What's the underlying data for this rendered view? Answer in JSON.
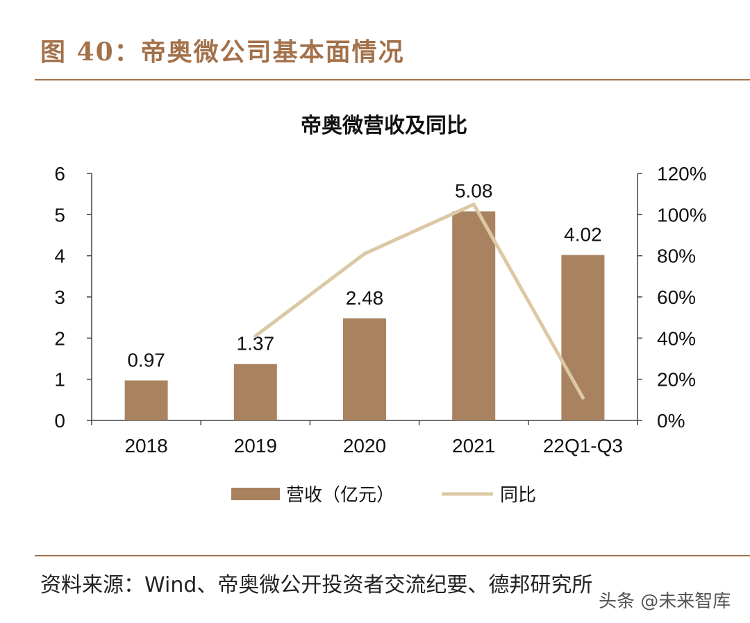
{
  "figure": {
    "title": "图 40：帝奥微公司基本面情况",
    "source": "资料来源：Wind、帝奥微公开投资者交流纪要、德邦研究所",
    "watermark": "头条 @未来智库"
  },
  "colors": {
    "accent": "#a3714a",
    "bar": "#a98360",
    "line": "#dcc8a4",
    "axis": "#444444",
    "text": "#111111"
  },
  "chart_data": {
    "type": "bar",
    "title": "帝奥微营收及同比",
    "categories": [
      "2018",
      "2019",
      "2020",
      "2021",
      "22Q1-Q3"
    ],
    "series": [
      {
        "name": "营收（亿元）",
        "type": "bar",
        "axis": "left",
        "values": [
          0.97,
          1.37,
          2.48,
          5.08,
          4.02
        ],
        "data_labels": [
          "0.97",
          "1.37",
          "2.48",
          "5.08",
          "4.02"
        ]
      },
      {
        "name": "同比",
        "type": "line",
        "axis": "right",
        "values": [
          null,
          0.41,
          0.81,
          1.05,
          0.11
        ]
      }
    ],
    "y_left": {
      "min": 0,
      "max": 6,
      "ticks": [
        "0",
        "1",
        "2",
        "3",
        "4",
        "5",
        "6"
      ]
    },
    "y_right": {
      "min": 0,
      "max": 1.2,
      "ticks": [
        "0%",
        "20%",
        "40%",
        "60%",
        "80%",
        "100%",
        "120%"
      ]
    },
    "legend": {
      "position": "bottom"
    }
  }
}
